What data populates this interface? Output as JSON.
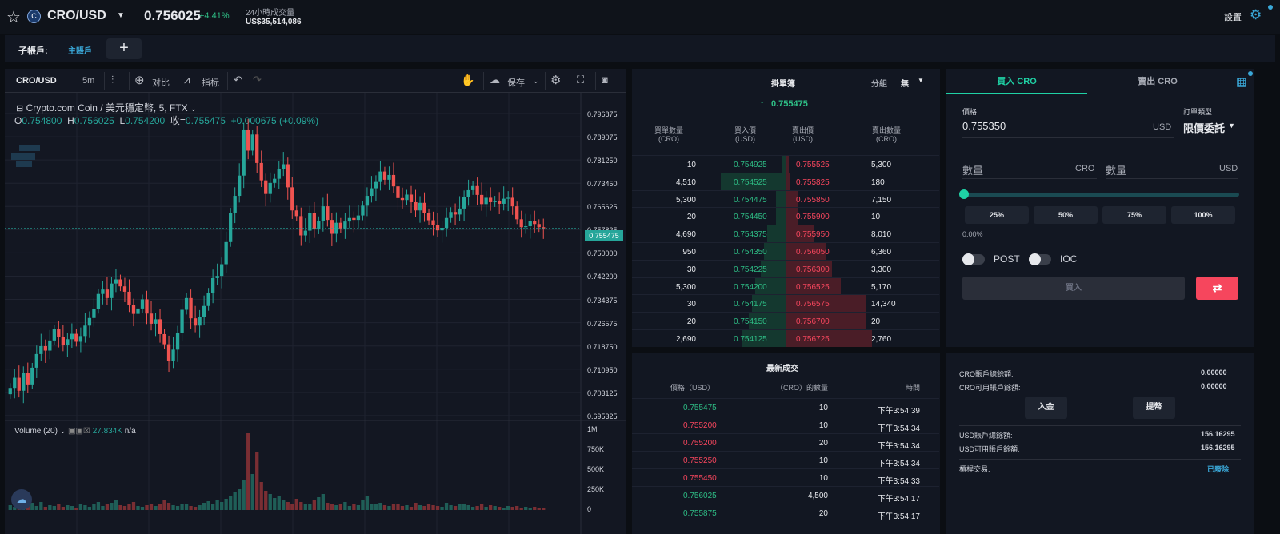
{
  "header": {
    "pair": "CRO/USD",
    "price": "0.756025",
    "change": "+4.41%",
    "vol_label": "24小時成交量",
    "vol_value": "US$35,514,086",
    "settings": "設置",
    "coin_glyph": "C"
  },
  "subbar": {
    "label": "子帳戶:",
    "main": "主賬戶",
    "add": "+"
  },
  "chart": {
    "toolbar": {
      "symbol": "CRO/USD",
      "interval": "5m",
      "compare": "对比",
      "indicator": "指标",
      "save": "保存"
    },
    "legend_title": "Crypto.com Coin / 美元穩定幣, 5, FTX",
    "legend_ohlc": {
      "o_label": "O",
      "o": "0.754800",
      "h_label": "H",
      "h": "0.756025",
      "l_label": "L",
      "l": "0.754200",
      "c_label": "收=",
      "c": "0.755475",
      "delta": "+0.000675 (+0.09%)"
    },
    "price_axis": [
      "0.796875",
      "0.789075",
      "0.781250",
      "0.773450",
      "0.765625",
      "0.757825",
      "0.750000",
      "0.742200",
      "0.734375",
      "0.726575",
      "0.718750",
      "0.710950",
      "0.703125",
      "0.695325"
    ],
    "last_price": "0.755475",
    "volume_label": "Volume (20)",
    "volume_value": "27.834K",
    "volume_na": "n/a",
    "volume_axis": [
      "1M",
      "750K",
      "500K",
      "250K",
      "0"
    ],
    "colors": {
      "up": "#26a69a",
      "down": "#ef5350"
    }
  },
  "chart_data": {
    "type": "candlestick",
    "y_range": [
      0.6953,
      0.7969
    ],
    "last": 0.755475,
    "closes": [
      0.7051,
      0.7083,
      0.7042,
      0.7098,
      0.7062,
      0.7115,
      0.7158,
      0.7183,
      0.7169,
      0.7201,
      0.7236,
      0.7212,
      0.7188,
      0.7205,
      0.7222,
      0.7197,
      0.7215,
      0.7248,
      0.7272,
      0.7301,
      0.7348,
      0.7362,
      0.7335,
      0.7381,
      0.7394,
      0.7372,
      0.7355,
      0.7312,
      0.7285,
      0.7302,
      0.7331,
      0.7286,
      0.7254,
      0.7268,
      0.7221,
      0.7189,
      0.7135,
      0.7172,
      0.7226,
      0.7298,
      0.7335,
      0.7271,
      0.7248,
      0.7276,
      0.731,
      0.7352,
      0.7398,
      0.7405,
      0.7442,
      0.7512,
      0.7605,
      0.7658,
      0.7722,
      0.7868,
      0.7801,
      0.7852,
      0.7762,
      0.7707,
      0.7664,
      0.7699,
      0.7712,
      0.7742,
      0.7758,
      0.7685,
      0.7612,
      0.7594,
      0.7533,
      0.7548,
      0.7605,
      0.7552,
      0.7578,
      0.7625,
      0.7582,
      0.7538,
      0.7573,
      0.7555,
      0.7577,
      0.7588,
      0.7582,
      0.7596,
      0.7627,
      0.7658,
      0.7682,
      0.7702,
      0.7735,
      0.7709,
      0.7724,
      0.7688,
      0.7651,
      0.7645,
      0.7662,
      0.7638,
      0.7612,
      0.7636,
      0.7603,
      0.7581,
      0.7566,
      0.7549,
      0.7557,
      0.7588,
      0.7607,
      0.7599,
      0.7618,
      0.7654,
      0.7676,
      0.7689,
      0.7661,
      0.7632,
      0.7652,
      0.7638,
      0.7643,
      0.7633,
      0.7649,
      0.7652,
      0.7625,
      0.7584,
      0.7559,
      0.7562,
      0.7578,
      0.7569,
      0.7559,
      0.7555
    ],
    "volumes": [
      0.06,
      0.04,
      0.08,
      0.05,
      0.07,
      0.09,
      0.05,
      0.1,
      0.04,
      0.06,
      0.05,
      0.07,
      0.04,
      0.06,
      0.05,
      0.03,
      0.07,
      0.06,
      0.04,
      0.08,
      0.1,
      0.05,
      0.07,
      0.09,
      0.12,
      0.06,
      0.05,
      0.07,
      0.1,
      0.05,
      0.04,
      0.06,
      0.08,
      0.05,
      0.07,
      0.12,
      0.09,
      0.06,
      0.05,
      0.07,
      0.08,
      0.05,
      0.04,
      0.06,
      0.09,
      0.11,
      0.07,
      0.12,
      0.1,
      0.14,
      0.18,
      0.23,
      0.26,
      0.38,
      0.96,
      0.45,
      0.72,
      0.35,
      0.24,
      0.2,
      0.15,
      0.18,
      0.12,
      0.1,
      0.08,
      0.14,
      0.1,
      0.07,
      0.08,
      0.12,
      0.16,
      0.2,
      0.09,
      0.07,
      0.06,
      0.08,
      0.1,
      0.05,
      0.07,
      0.06,
      0.12,
      0.18,
      0.08,
      0.07,
      0.09,
      0.06,
      0.05,
      0.08,
      0.07,
      0.05,
      0.06,
      0.04,
      0.09,
      0.06,
      0.05,
      0.07,
      0.06,
      0.05,
      0.04,
      0.09,
      0.06,
      0.05,
      0.07,
      0.08,
      0.06,
      0.04,
      0.05,
      0.07,
      0.04,
      0.06,
      0.05,
      0.04,
      0.03,
      0.05,
      0.04,
      0.05,
      0.03,
      0.04,
      0.03,
      0.04,
      0.03,
      0.02
    ]
  },
  "orderbook": {
    "title": "掛單簿",
    "group_label": "分組",
    "group_value": "無",
    "mid_price": "0.755475",
    "headers": [
      "買單數量\n(CRO)",
      "買入價\n(USD)",
      "賣出價\n(USD)",
      "賣出數量\n(CRO)"
    ],
    "rows": [
      {
        "bq": "10",
        "bp": "0.754925",
        "ap": "0.755525",
        "aq": "5,300",
        "bd": 0.02,
        "ad": 0.02
      },
      {
        "bq": "4,510",
        "bp": "0.754525",
        "ap": "0.755825",
        "aq": "180",
        "bd": 0.42,
        "ad": 0.03
      },
      {
        "bq": "5,300",
        "bp": "0.754475",
        "ap": "0.755850",
        "aq": "7,150",
        "bd": 0.06,
        "ad": 0.08
      },
      {
        "bq": "20",
        "bp": "0.754450",
        "ap": "0.755900",
        "aq": "10",
        "bd": 0.06,
        "ad": 0.08
      },
      {
        "bq": "4,690",
        "bp": "0.754375",
        "ap": "0.755950",
        "aq": "8,010",
        "bd": 0.12,
        "ad": 0.18
      },
      {
        "bq": "950",
        "bp": "0.754350",
        "ap": "0.756050",
        "aq": "6,360",
        "bd": 0.14,
        "ad": 0.26
      },
      {
        "bq": "30",
        "bp": "0.754225",
        "ap": "0.756300",
        "aq": "3,300",
        "bd": 0.16,
        "ad": 0.3
      },
      {
        "bq": "5,300",
        "bp": "0.754200",
        "ap": "0.756525",
        "aq": "5,170",
        "bd": 0.2,
        "ad": 0.36
      },
      {
        "bq": "30",
        "bp": "0.754175",
        "ap": "0.756575",
        "aq": "14,340",
        "bd": 0.22,
        "ad": 0.52
      },
      {
        "bq": "20",
        "bp": "0.754150",
        "ap": "0.756700",
        "aq": "20",
        "bd": 0.24,
        "ad": 0.52
      },
      {
        "bq": "2,690",
        "bp": "0.754125",
        "ap": "0.756725",
        "aq": "2,760",
        "bd": 0.28,
        "ad": 0.56
      }
    ]
  },
  "trades": {
    "title": "最新成交",
    "headers": [
      "價格（USD）",
      "（CRO）的數量",
      "時間"
    ],
    "rows": [
      {
        "p": "0.755475",
        "q": "10",
        "t": "下午3:54:39",
        "side": "buy"
      },
      {
        "p": "0.755200",
        "q": "10",
        "t": "下午3:54:34",
        "side": "sell"
      },
      {
        "p": "0.755200",
        "q": "20",
        "t": "下午3:54:34",
        "side": "sell"
      },
      {
        "p": "0.755250",
        "q": "10",
        "t": "下午3:54:34",
        "side": "sell"
      },
      {
        "p": "0.755450",
        "q": "10",
        "t": "下午3:54:33",
        "side": "sell"
      },
      {
        "p": "0.756025",
        "q": "4,500",
        "t": "下午3:54:17",
        "side": "buy"
      },
      {
        "p": "0.755875",
        "q": "20",
        "t": "下午3:54:17",
        "side": "buy"
      }
    ]
  },
  "order_form": {
    "tab_buy": "買入 CRO",
    "tab_sell": "賣出 CRO",
    "price_label": "價格",
    "price_value": "0.755350",
    "price_unit": "USD",
    "type_label": "訂單類型",
    "type_value": "限價委託",
    "qty_label": "數量",
    "qty_unit": "CRO",
    "qty2_label": "數量",
    "qty2_unit": "USD",
    "pcts": [
      "25%",
      "50%",
      "75%",
      "100%"
    ],
    "slider_value": "0.00%",
    "post": "POST",
    "ioc": "IOC",
    "submit": "買入",
    "swap_icon": "⇄",
    "accent": "#1fd1a5",
    "sell_color": "#f6465d"
  },
  "account": {
    "rows1": [
      {
        "l": "CRO賬戶總餘額:",
        "v": "0.00000"
      },
      {
        "l": "CRO可用賬戶餘額:",
        "v": "0.00000"
      }
    ],
    "deposit": "入金",
    "withdraw": "提幣",
    "rows2": [
      {
        "l": "USD賬戶總餘額:",
        "v": "156.16295"
      },
      {
        "l": "USD可用賬戶餘額:",
        "v": "156.16295"
      }
    ],
    "margin_label": "槓桿交易:",
    "margin_value": "已廢除"
  }
}
